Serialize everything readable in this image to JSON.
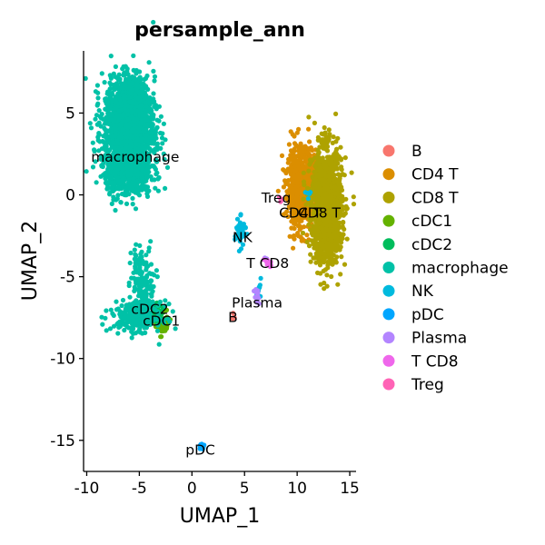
{
  "chart_data": {
    "type": "scatter",
    "title": "persample_ann",
    "xlabel": "UMAP_1",
    "ylabel": "UMAP_2",
    "xlim": [
      -10.3,
      15.6
    ],
    "ylim": [
      -16.9,
      8.8
    ],
    "xticks": [
      -10,
      -5,
      0,
      5,
      10,
      15
    ],
    "yticks": [
      -15,
      -10,
      -5,
      0,
      5
    ],
    "xtick_labels": [
      "-10",
      "-5",
      "0",
      "5",
      "10",
      "15"
    ],
    "ytick_labels": [
      "-15",
      "-10",
      "-5",
      "0",
      "5"
    ],
    "grid": false,
    "legend_position": "right",
    "series": [
      {
        "name": "B",
        "color": "#F8766D",
        "label": "B",
        "label_x": 3.9,
        "label_y": -7.5,
        "clusters": [
          {
            "cx": 4.0,
            "cy": -7.4,
            "sx": 0.12,
            "sy": 0.12,
            "n": 4
          }
        ]
      },
      {
        "name": "CD4 T",
        "color": "#DB8E00",
        "label": "CD4 T",
        "label_x": 10.3,
        "label_y": -1.1,
        "clusters": [
          {
            "cx": 10.4,
            "cy": 0.4,
            "sx": 0.75,
            "sy": 1.35,
            "n": 750
          },
          {
            "cx": 11.3,
            "cy": 1.1,
            "sx": 0.9,
            "sy": 0.5,
            "n": 180
          }
        ]
      },
      {
        "name": "CD8 T",
        "color": "#AEA200",
        "label": "CD8 T",
        "label_x": 12.1,
        "label_y": -1.1,
        "clusters": [
          {
            "cx": 12.8,
            "cy": -0.7,
            "sx": 0.8,
            "sy": 1.9,
            "n": 1300
          }
        ]
      },
      {
        "name": "cDC1",
        "color": "#64B200",
        "label": "cDC1",
        "label_x": -2.9,
        "label_y": -7.7,
        "clusters": [
          {
            "cx": -2.8,
            "cy": -7.9,
            "sx": 0.3,
            "sy": 0.35,
            "n": 70
          }
        ]
      },
      {
        "name": "cDC2",
        "color": "#00BD5C",
        "label": "cDC2",
        "label_x": -4.0,
        "label_y": -7.0,
        "clusters": [
          {
            "cx": -3.4,
            "cy": -7.2,
            "sx": 0.35,
            "sy": 0.3,
            "n": 40
          }
        ]
      },
      {
        "name": "macrophage",
        "color": "#00C1A7",
        "label": "macrophage",
        "label_x": -5.4,
        "label_y": 2.3,
        "clusters": [
          {
            "cx": -6.0,
            "cy": 3.8,
            "sx": 1.35,
            "sy": 1.75,
            "n": 1500
          },
          {
            "cx": -5.9,
            "cy": 5.6,
            "sx": 1.0,
            "sy": 0.9,
            "n": 450
          },
          {
            "cx": -6.0,
            "cy": 1.4,
            "sx": 1.2,
            "sy": 0.8,
            "n": 400
          },
          {
            "cx": -5.3,
            "cy": -7.4,
            "sx": 1.3,
            "sy": 0.5,
            "n": 250
          },
          {
            "cx": -4.5,
            "cy": -5.6,
            "sx": 0.6,
            "sy": 1.3,
            "n": 110
          },
          {
            "cx": -5.1,
            "cy": -4.7,
            "sx": 0.35,
            "sy": 0.8,
            "n": 40
          }
        ]
      },
      {
        "name": "NK",
        "color": "#00BADE",
        "label": "NK",
        "label_x": 4.8,
        "label_y": -2.6,
        "clusters": [
          {
            "cx": 4.6,
            "cy": -2.3,
            "sx": 0.28,
            "sy": 0.45,
            "n": 60
          },
          {
            "cx": 6.4,
            "cy": -5.9,
            "sx": 0.15,
            "sy": 0.4,
            "n": 10
          },
          {
            "cx": 11.0,
            "cy": 0.1,
            "sx": 0.15,
            "sy": 0.15,
            "n": 5
          }
        ]
      },
      {
        "name": "pDC",
        "color": "#00A6FF",
        "label": "pDC",
        "label_x": 0.8,
        "label_y": -15.6,
        "clusters": [
          {
            "cx": 0.9,
            "cy": -15.4,
            "sx": 0.15,
            "sy": 0.12,
            "n": 12
          }
        ]
      },
      {
        "name": "Plasma",
        "color": "#B385FF",
        "label": "Plasma",
        "label_x": 6.2,
        "label_y": -6.6,
        "clusters": [
          {
            "cx": 6.2,
            "cy": -6.2,
            "sx": 0.15,
            "sy": 0.3,
            "n": 12
          },
          {
            "cx": 7.1,
            "cy": -4.0,
            "sx": 0.15,
            "sy": 0.2,
            "n": 8
          }
        ]
      },
      {
        "name": "T CD8",
        "color": "#EF67EB",
        "label": "T CD8",
        "label_x": 7.2,
        "label_y": -4.2,
        "clusters": [
          {
            "cx": 7.2,
            "cy": -4.2,
            "sx": 0.2,
            "sy": 0.2,
            "n": 10
          }
        ]
      },
      {
        "name": "Treg",
        "color": "#FF63B6",
        "label": "Treg",
        "label_x": 8.0,
        "label_y": -0.2,
        "clusters": [
          {
            "cx": 8.3,
            "cy": -0.2,
            "sx": 0.12,
            "sy": 0.12,
            "n": 4
          }
        ]
      }
    ]
  }
}
